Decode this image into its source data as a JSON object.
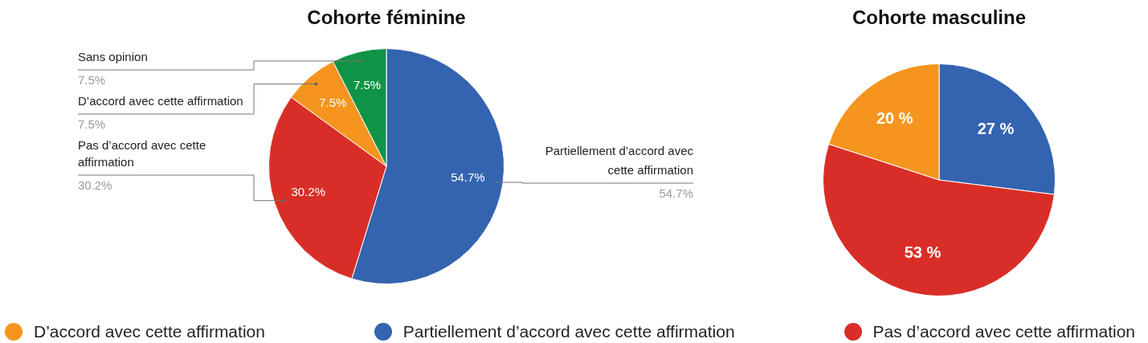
{
  "chart_data": [
    {
      "type": "pie",
      "title": "Cohorte féminine",
      "categories": [
        "Partiellement d’accord avec cette affirmation",
        "Pas d’accord avec cette affirmation",
        "D’accord avec cette affirmation",
        "Sans opinion"
      ],
      "values": [
        54.7,
        30.2,
        7.5,
        7.5
      ],
      "colors": [
        "#3463b0",
        "#d92e27",
        "#f5951f",
        "#0f9447"
      ],
      "value_labels": [
        "54.7%",
        "30.2%",
        "7.5%",
        "7.5%"
      ],
      "legend": false
    },
    {
      "type": "pie",
      "title": "Cohorte masculine",
      "categories": [
        "Partiellement d’accord avec cette affirmation",
        "Pas d’accord avec cette affirmation",
        "D’accord avec cette affirmation"
      ],
      "values": [
        27,
        53,
        20
      ],
      "colors": [
        "#3463b0",
        "#d92e27",
        "#f5951f"
      ],
      "value_labels": [
        "27 %",
        "53 %",
        "20 %"
      ],
      "legend": "bottom"
    }
  ]
}
